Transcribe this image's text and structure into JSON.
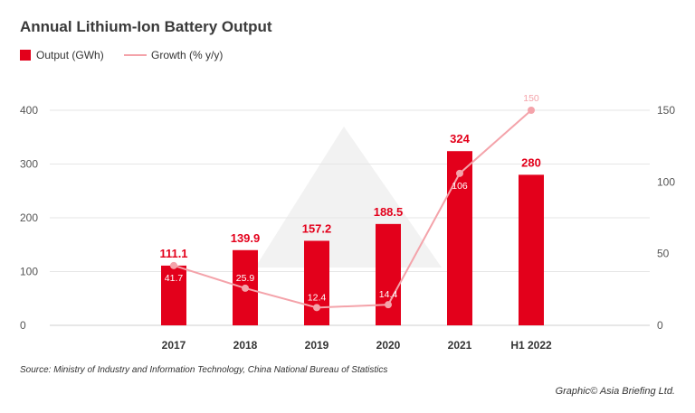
{
  "chart_data": {
    "type": "bar",
    "title": "Annual Lithium-Ion Battery Output",
    "categories": [
      "2017",
      "2018",
      "2019",
      "2020",
      "2021",
      "H1 2022"
    ],
    "series": [
      {
        "name": "Output (GWh)",
        "type": "bar",
        "axis": "left",
        "color": "#e3001b",
        "values": [
          111.1,
          139.9,
          157.2,
          188.5,
          324,
          280
        ]
      },
      {
        "name": "Growth (% y/y)",
        "type": "line",
        "axis": "right",
        "color": "#f4a3aa",
        "values": [
          41.7,
          25.9,
          12.4,
          14.4,
          106,
          150
        ]
      }
    ],
    "y_left": {
      "ylim": [
        0,
        400
      ],
      "ticks": [
        0,
        100,
        200,
        300,
        400
      ]
    },
    "y_right": {
      "ylim": [
        0,
        150
      ],
      "ticks": [
        0,
        50,
        100,
        150
      ]
    },
    "grid": true,
    "legend_position": "top-left"
  },
  "footer": {
    "source": "Source: Ministry of Industry and Information Technology, China National Bureau of Statistics",
    "credit": "Graphic© Asia Briefing Ltd."
  }
}
